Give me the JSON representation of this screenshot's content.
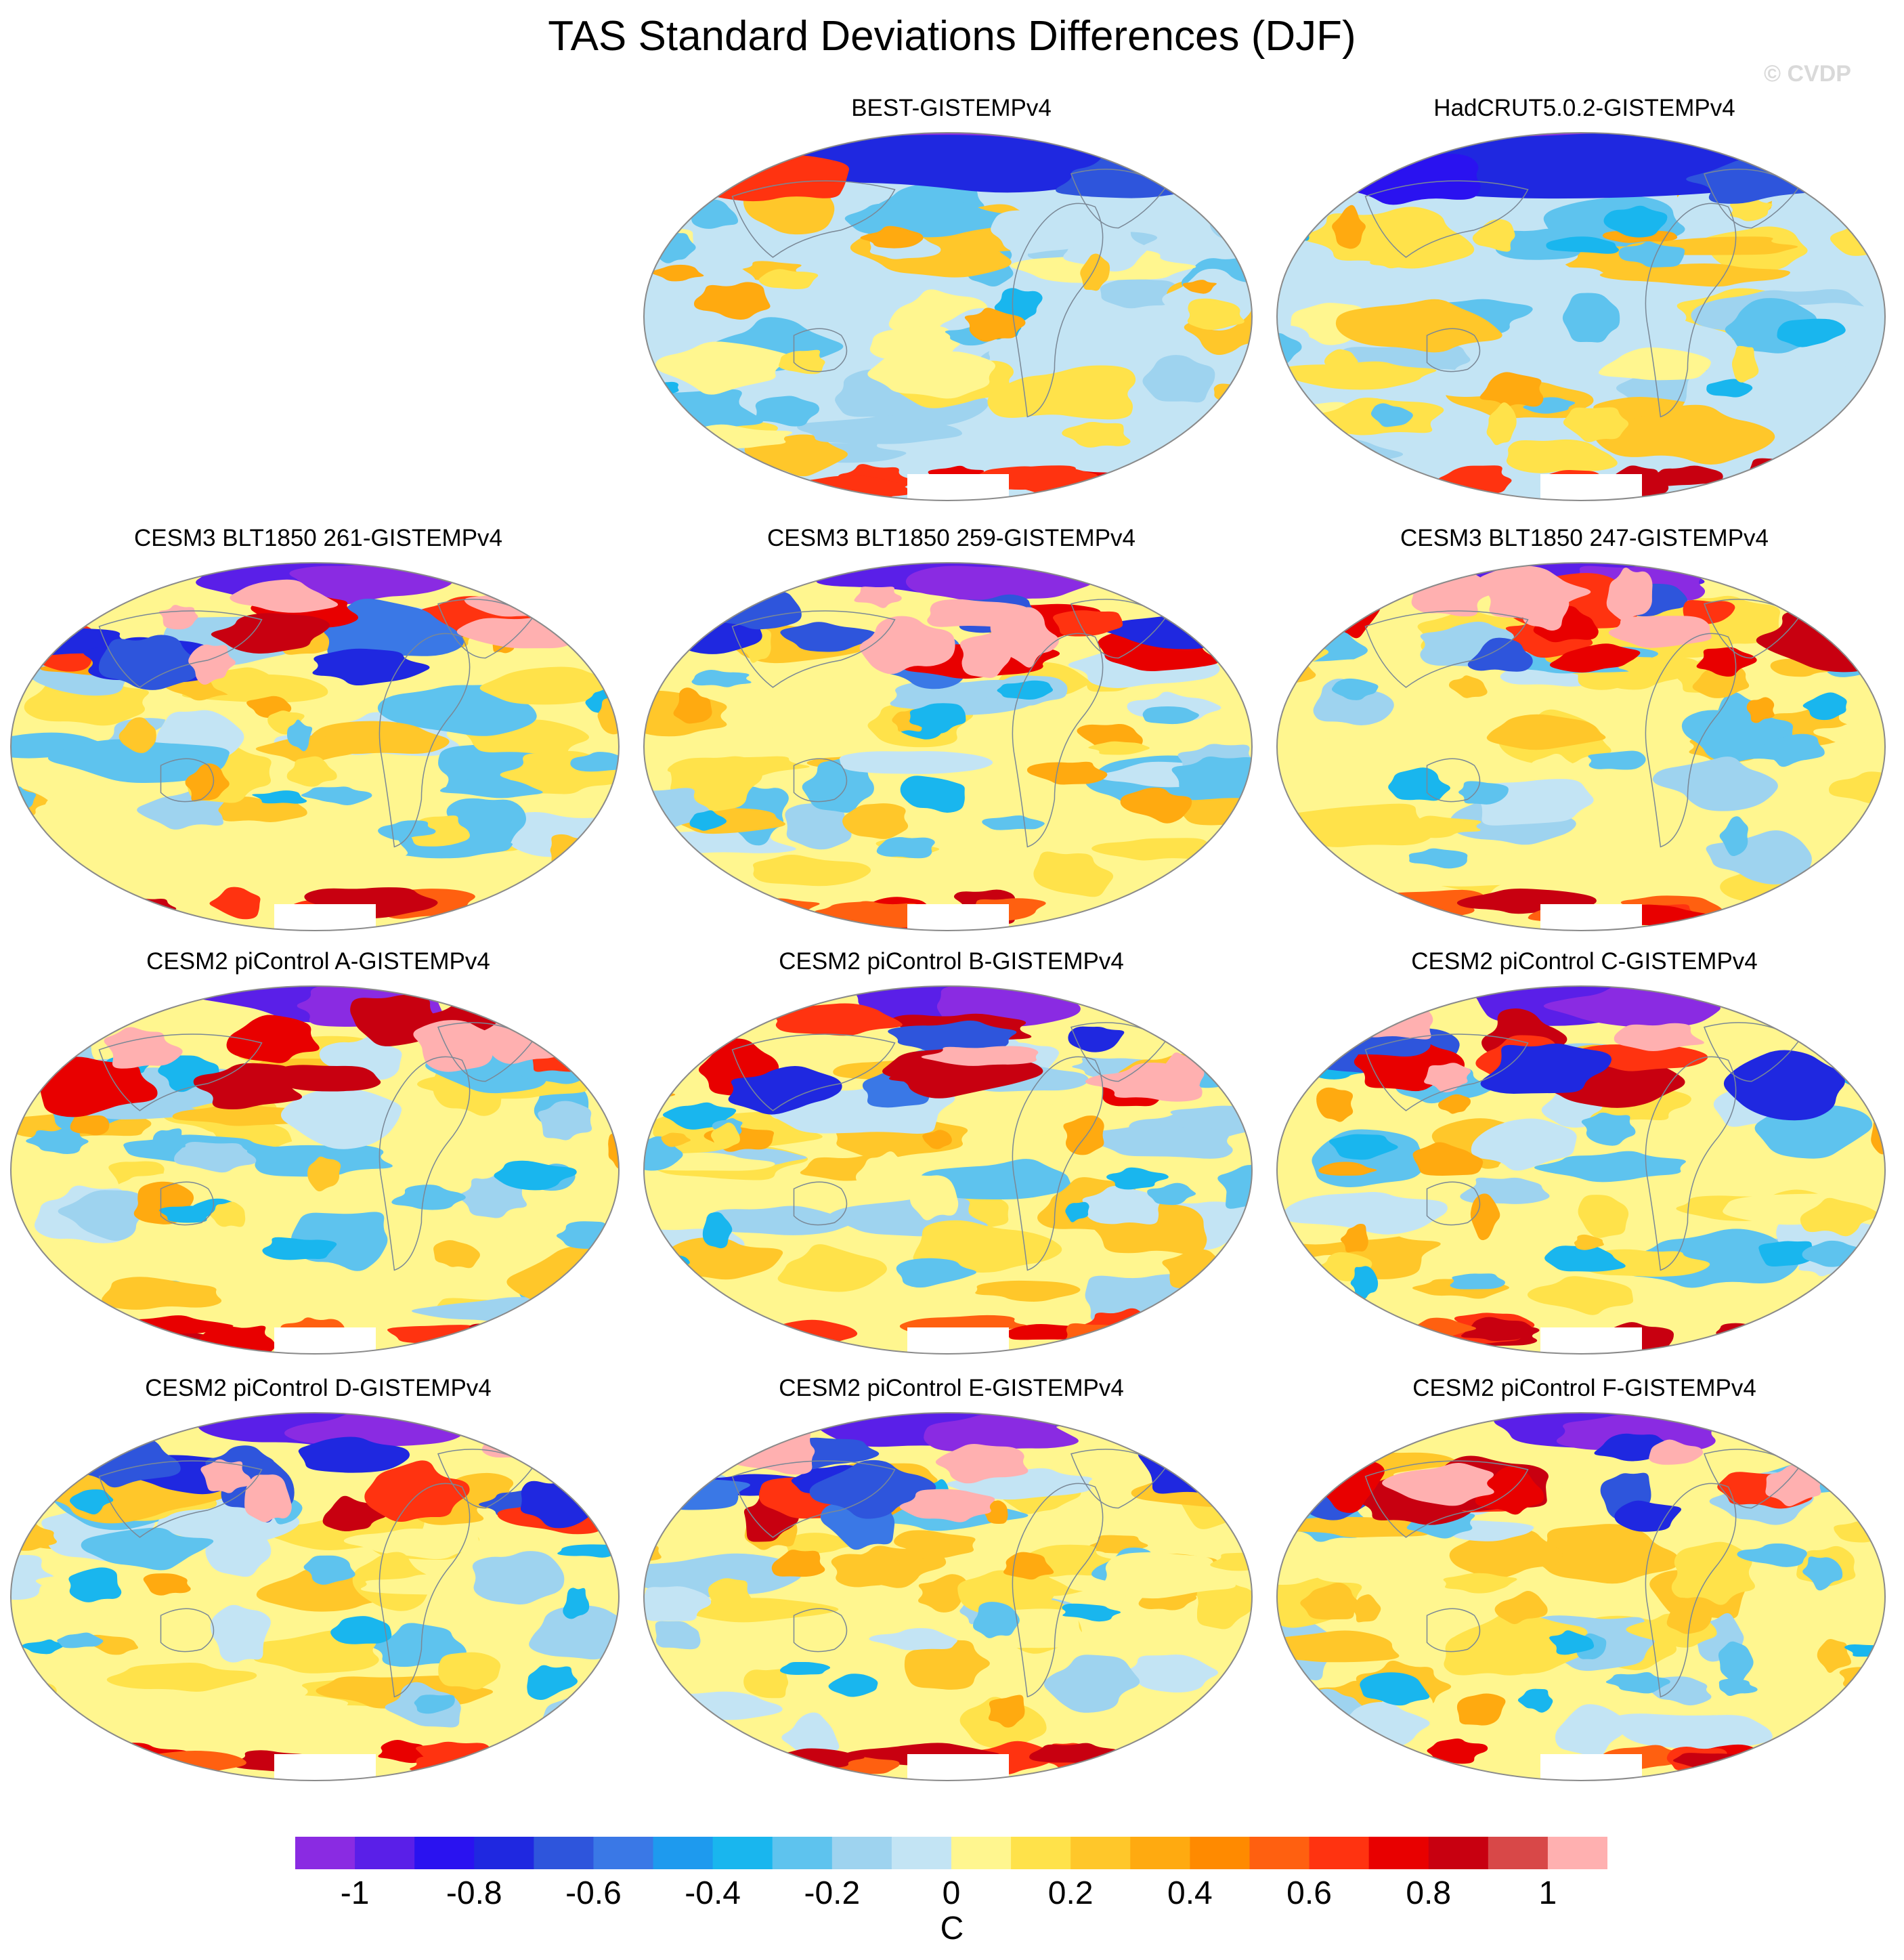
{
  "title": "TAS Standard Deviations Differences (DJF)",
  "watermark": "© CVDP",
  "panels": [
    {
      "title": "BEST-GISTEMPv4",
      "style": "obs_best"
    },
    {
      "title": "HadCRUT5.0.2-GISTEMPv4",
      "style": "obs_had"
    },
    {
      "title": "CESM3 BLT1850 261-GISTEMPv4",
      "style": "cesm3"
    },
    {
      "title": "CESM3 BLT1850 259-GISTEMPv4",
      "style": "cesm3"
    },
    {
      "title": "CESM3 BLT1850 247-GISTEMPv4",
      "style": "cesm3"
    },
    {
      "title": "CESM2 piControl A-GISTEMPv4",
      "style": "cesm2"
    },
    {
      "title": "CESM2 piControl B-GISTEMPv4",
      "style": "cesm2"
    },
    {
      "title": "CESM2 piControl C-GISTEMPv4",
      "style": "cesm2"
    },
    {
      "title": "CESM2 piControl D-GISTEMPv4",
      "style": "cesm2"
    },
    {
      "title": "CESM2 piControl E-GISTEMPv4",
      "style": "cesm2"
    },
    {
      "title": "CESM2 piControl F-GISTEMPv4",
      "style": "cesm2"
    }
  ],
  "colorbar": {
    "units": "C",
    "tick_labels": [
      "-1",
      "-0.8",
      "-0.6",
      "-0.4",
      "-0.2",
      "0",
      "0.2",
      "0.4",
      "0.6",
      "0.8",
      "1"
    ],
    "colors": [
      "#8a2be2",
      "#5a1fe8",
      "#2a12f0",
      "#1f28e0",
      "#2e55dc",
      "#3a78e6",
      "#1e9aee",
      "#19b6ee",
      "#5ec3ee",
      "#9ed3ef",
      "#c3e4f4",
      "#fff68f",
      "#ffe24a",
      "#ffc72a",
      "#ffaa10",
      "#ff8a00",
      "#ff6010",
      "#ff3310",
      "#e80000",
      "#c80010",
      "#d84848",
      "#ffb0b0"
    ]
  }
}
